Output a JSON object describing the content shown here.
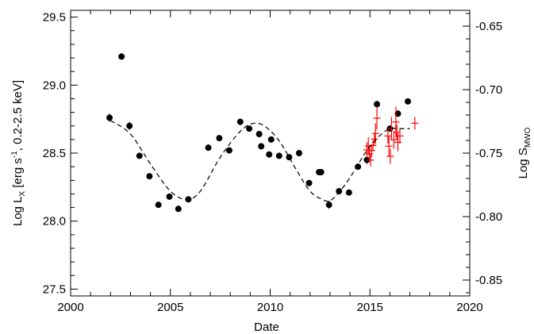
{
  "chart_data": {
    "type": "scatter",
    "xlabel": "Date",
    "ylabel_left": {
      "base": "Log L",
      "sub": "X",
      "mid": " [erg s",
      "sup": "-1",
      "end": ", 0.2-2.5 keV]"
    },
    "ylabel_right": {
      "base": "Log S",
      "sub": "MWO"
    },
    "xlim": [
      2000,
      2020
    ],
    "ylim_left": [
      27.45,
      29.55
    ],
    "ylim_right": [
      -0.8625,
      -0.6375
    ],
    "x_ticks": [
      "2000",
      "2005",
      "2010",
      "2015",
      "2020"
    ],
    "y_left_ticks": [
      "27.5",
      "28.0",
      "28.5",
      "29.0",
      "29.5"
    ],
    "y_right_ticks": [
      "-0.85",
      "-0.80",
      "-0.75",
      "-0.70",
      "-0.65"
    ],
    "grid": false,
    "series": [
      {
        "marker": "filled-circle",
        "color": "#000000",
        "axis": "left",
        "points": [
          {
            "x": 2001.95,
            "y": 28.76,
            "err": 0.03
          },
          {
            "x": 2002.55,
            "y": 29.21
          },
          {
            "x": 2002.95,
            "y": 28.7,
            "err": 0.03
          },
          {
            "x": 2003.45,
            "y": 28.48,
            "err": 0.02
          },
          {
            "x": 2003.95,
            "y": 28.33,
            "err": 0.02
          },
          {
            "x": 2004.4,
            "y": 28.12
          },
          {
            "x": 2004.95,
            "y": 28.18
          },
          {
            "x": 2005.4,
            "y": 28.09
          },
          {
            "x": 2005.9,
            "y": 28.16
          },
          {
            "x": 2006.9,
            "y": 28.54
          },
          {
            "x": 2007.45,
            "y": 28.61
          },
          {
            "x": 2007.95,
            "y": 28.52
          },
          {
            "x": 2008.5,
            "y": 28.73
          },
          {
            "x": 2008.95,
            "y": 28.68
          },
          {
            "x": 2009.45,
            "y": 28.64
          },
          {
            "x": 2009.55,
            "y": 28.55
          },
          {
            "x": 2009.95,
            "y": 28.49
          },
          {
            "x": 2010.05,
            "y": 28.6
          },
          {
            "x": 2010.45,
            "y": 28.48
          },
          {
            "x": 2010.95,
            "y": 28.47
          },
          {
            "x": 2011.45,
            "y": 28.5
          },
          {
            "x": 2011.95,
            "y": 28.28
          },
          {
            "x": 2012.45,
            "y": 28.36
          },
          {
            "x": 2012.55,
            "y": 28.36
          },
          {
            "x": 2012.95,
            "y": 28.12,
            "err": 0.03
          },
          {
            "x": 2013.45,
            "y": 28.22
          },
          {
            "x": 2013.95,
            "y": 28.21
          },
          {
            "x": 2014.4,
            "y": 28.4
          },
          {
            "x": 2014.85,
            "y": 28.45,
            "err": 0.03
          },
          {
            "x": 2015.35,
            "y": 28.86
          },
          {
            "x": 2016.0,
            "y": 28.68
          },
          {
            "x": 2016.4,
            "y": 28.79
          },
          {
            "x": 2016.9,
            "y": 28.88
          }
        ]
      },
      {
        "marker": "plus-errorbar",
        "color": "#ff0000",
        "axis": "right",
        "points": [
          {
            "x": 2014.85,
            "y": -0.7475,
            "err": 0.006
          },
          {
            "x": 2014.92,
            "y": -0.7445,
            "err": 0.007
          },
          {
            "x": 2014.98,
            "y": -0.7505,
            "err": 0.006
          },
          {
            "x": 2015.03,
            "y": -0.7555,
            "err": 0.005
          },
          {
            "x": 2015.08,
            "y": -0.748,
            "err": 0.005
          },
          {
            "x": 2015.15,
            "y": -0.744,
            "err": 0.004
          },
          {
            "x": 2015.22,
            "y": -0.739,
            "err": 0.005
          },
          {
            "x": 2015.28,
            "y": -0.7345,
            "err": 0.008
          },
          {
            "x": 2015.35,
            "y": -0.7225,
            "err": 0.009
          },
          {
            "x": 2015.9,
            "y": -0.7365,
            "err": 0.006
          },
          {
            "x": 2015.95,
            "y": -0.7445,
            "err": 0.008
          },
          {
            "x": 2016.02,
            "y": -0.7525,
            "err": 0.006
          },
          {
            "x": 2016.08,
            "y": -0.7305,
            "err": 0.009
          },
          {
            "x": 2016.2,
            "y": -0.7395,
            "err": 0.007
          },
          {
            "x": 2016.3,
            "y": -0.7255,
            "err": 0.012
          },
          {
            "x": 2016.35,
            "y": -0.7335,
            "err": 0.006
          },
          {
            "x": 2016.4,
            "y": -0.7415,
            "err": 0.007
          },
          {
            "x": 2016.5,
            "y": -0.7365,
            "err": 0.006
          },
          {
            "x": 2017.25,
            "y": -0.7265,
            "err": 0.005
          }
        ]
      },
      {
        "marker": "dashed-line",
        "color": "#000000",
        "axis": "left",
        "x": [
          2002.0,
          2003.0,
          2004.0,
          2005.0,
          2005.8,
          2006.5,
          2007.5,
          2008.5,
          2009.2,
          2009.8,
          2010.5,
          2011.3,
          2012.0,
          2012.6,
          2013.0,
          2013.5,
          2014.0,
          2014.5,
          2015.0,
          2015.5,
          2016.0,
          2016.5,
          2017.0
        ],
        "y": [
          28.74,
          28.64,
          28.42,
          28.22,
          28.16,
          28.22,
          28.47,
          28.66,
          28.72,
          28.69,
          28.58,
          28.38,
          28.22,
          28.16,
          28.15,
          28.22,
          28.32,
          28.44,
          28.55,
          28.63,
          28.68,
          28.68,
          28.68
        ]
      }
    ]
  }
}
